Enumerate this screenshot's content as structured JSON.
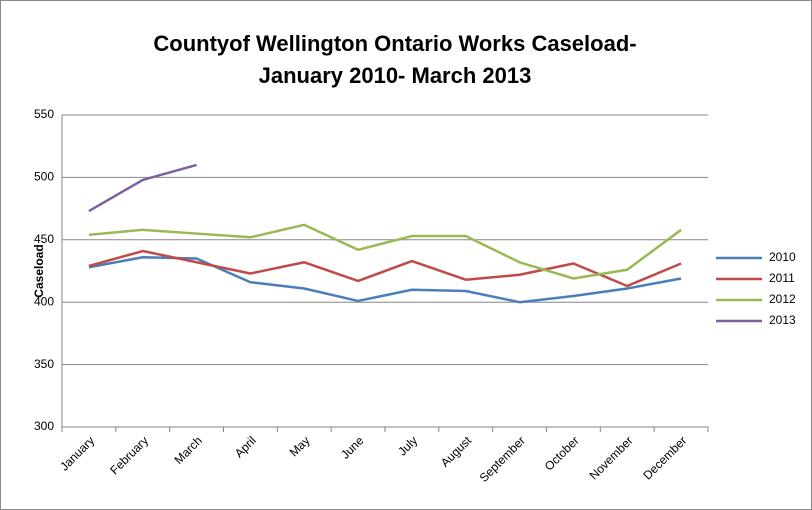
{
  "chart_data": {
    "type": "line",
    "title": [
      "Countyof Wellington Ontario Works Caseload-",
      "January 2010- March 2013"
    ],
    "y_label": "Caseload",
    "categories": [
      "January",
      "February",
      "March",
      "April",
      "May",
      "June",
      "July",
      "August",
      "September",
      "October",
      "November",
      "December"
    ],
    "series": [
      {
        "name": "2010",
        "color": "#4a7ebb",
        "values": [
          428,
          436,
          435,
          416,
          411,
          401,
          410,
          409,
          400,
          405,
          411,
          419
        ]
      },
      {
        "name": "2011",
        "color": "#be4b48",
        "values": [
          429,
          441,
          432,
          423,
          432,
          417,
          433,
          418,
          422,
          431,
          413,
          431
        ]
      },
      {
        "name": "2012",
        "color": "#98b954",
        "values": [
          454,
          458,
          455,
          452,
          462,
          442,
          453,
          453,
          432,
          419,
          426,
          458
        ]
      },
      {
        "name": "2013",
        "color": "#7d60a0",
        "values": [
          473,
          498,
          510,
          null,
          null,
          null,
          null,
          null,
          null,
          null,
          null,
          null
        ]
      }
    ],
    "ylim": [
      300,
      550
    ],
    "yticks": [
      300,
      350,
      400,
      450,
      500,
      550
    ],
    "grid": true,
    "legend": "right"
  }
}
